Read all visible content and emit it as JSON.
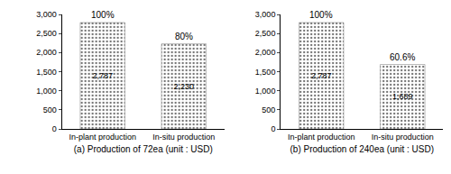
{
  "chart_data": [
    {
      "type": "bar",
      "title": "(a) Production of 72ea (unit : USD)",
      "categories": [
        "In-plant production",
        "In-situ production"
      ],
      "values": [
        2787,
        2230
      ],
      "value_labels": [
        "2,787",
        "2,230"
      ],
      "data_labels": true,
      "color": "#a0a0a0",
      "annotations": [
        {
          "category": "In-plant production",
          "text": "100%"
        },
        {
          "category": "In-situ production",
          "text": "80%"
        }
      ],
      "ylim": [
        0,
        3000
      ],
      "yticks": [
        0,
        500,
        {
          "value": 1000,
          "label": "1,000"
        },
        {
          "value": 1500,
          "label": "1,500"
        },
        {
          "value": 2000,
          "label": "2,000"
        },
        {
          "value": 2500,
          "label": "2,500"
        },
        {
          "value": 3000,
          "label": "3,000"
        }
      ],
      "grid": false
    },
    {
      "type": "bar",
      "title": "(b) Production of 240ea (unit : USD)",
      "categories": [
        "In-plant production",
        "In-situ production"
      ],
      "values": [
        2787,
        1689
      ],
      "value_labels": [
        "2,787",
        "1,689"
      ],
      "data_labels": true,
      "color": "#a0a0a0",
      "annotations": [
        {
          "category": "In-plant production",
          "text": "100%"
        },
        {
          "category": "In-situ production",
          "text": "60.6%"
        }
      ],
      "ylim": [
        0,
        3000
      ],
      "yticks": [
        0,
        500,
        {
          "value": 1000,
          "label": "1,000"
        },
        {
          "value": 1500,
          "label": "1,500"
        },
        {
          "value": 2000,
          "label": "2,000"
        },
        {
          "value": 2500,
          "label": "2,500"
        },
        {
          "value": 3000,
          "label": "3,000"
        }
      ],
      "grid": false
    }
  ]
}
